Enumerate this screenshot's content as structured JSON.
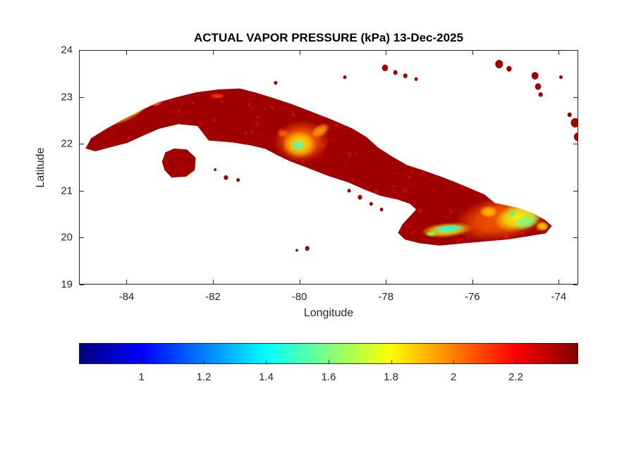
{
  "page": {
    "background": "#ffffff"
  },
  "chart_data": {
    "type": "heatmap",
    "title": "ACTUAL VAPOR PRESSURE (kPa) 13-Dec-2025",
    "xlabel": "Longitude",
    "ylabel": "Latitude",
    "xlim": [
      -85.1,
      -73.55
    ],
    "ylim": [
      19,
      24
    ],
    "xticks": [
      -84,
      -82,
      -80,
      -78,
      -76,
      -74
    ],
    "yticks": [
      19,
      20,
      21,
      22,
      23,
      24
    ],
    "grid": false,
    "legend": "none",
    "colormap": "jet",
    "axis_color": "#262626",
    "title_color": "#000000",
    "sea_color": "#ffffff",
    "colorbar": {
      "orientation": "horizontal",
      "limits": [
        0.8,
        2.4
      ],
      "ticks": [
        1,
        1.2,
        1.4,
        1.6,
        1.8,
        2,
        2.2
      ]
    },
    "base_land_value_kpa": 2.35,
    "regions": {
      "cuba_mainland": [
        [
          -84.95,
          21.9
        ],
        [
          -84.82,
          22.12
        ],
        [
          -84.45,
          22.33
        ],
        [
          -84.08,
          22.52
        ],
        [
          -83.7,
          22.7
        ],
        [
          -83.28,
          22.88
        ],
        [
          -82.82,
          23.0
        ],
        [
          -82.38,
          23.1
        ],
        [
          -81.88,
          23.16
        ],
        [
          -81.38,
          23.18
        ],
        [
          -81.0,
          23.09
        ],
        [
          -80.62,
          22.98
        ],
        [
          -80.22,
          22.86
        ],
        [
          -79.76,
          22.7
        ],
        [
          -79.26,
          22.52
        ],
        [
          -78.78,
          22.33
        ],
        [
          -78.44,
          22.14
        ],
        [
          -78.18,
          21.92
        ],
        [
          -77.86,
          21.73
        ],
        [
          -77.52,
          21.55
        ],
        [
          -77.12,
          21.43
        ],
        [
          -76.72,
          21.3
        ],
        [
          -76.36,
          21.17
        ],
        [
          -76.0,
          21.03
        ],
        [
          -75.72,
          20.92
        ],
        [
          -75.48,
          20.74
        ],
        [
          -74.98,
          20.64
        ],
        [
          -74.58,
          20.51
        ],
        [
          -74.32,
          20.38
        ],
        [
          -74.16,
          20.25
        ],
        [
          -74.3,
          20.09
        ],
        [
          -74.7,
          20.03
        ],
        [
          -75.2,
          19.96
        ],
        [
          -75.7,
          19.92
        ],
        [
          -76.18,
          19.88
        ],
        [
          -76.76,
          19.83
        ],
        [
          -77.22,
          19.88
        ],
        [
          -77.56,
          19.96
        ],
        [
          -77.72,
          20.1
        ],
        [
          -77.62,
          20.28
        ],
        [
          -77.44,
          20.46
        ],
        [
          -77.3,
          20.6
        ],
        [
          -77.44,
          20.72
        ],
        [
          -77.72,
          20.81
        ],
        [
          -78.12,
          20.89
        ],
        [
          -78.48,
          21.02
        ],
        [
          -78.88,
          21.18
        ],
        [
          -79.32,
          21.31
        ],
        [
          -79.82,
          21.49
        ],
        [
          -80.22,
          21.63
        ],
        [
          -80.52,
          21.76
        ],
        [
          -80.78,
          21.89
        ],
        [
          -81.14,
          21.97
        ],
        [
          -81.55,
          22.03
        ],
        [
          -82.1,
          22.07
        ],
        [
          -82.36,
          22.38
        ],
        [
          -82.8,
          22.42
        ],
        [
          -83.25,
          22.32
        ],
        [
          -83.6,
          22.18
        ],
        [
          -83.98,
          22.02
        ],
        [
          -84.4,
          21.92
        ],
        [
          -84.72,
          21.84
        ]
      ],
      "isla_de_la_juventud": [
        [
          -83.18,
          21.62
        ],
        [
          -83.1,
          21.82
        ],
        [
          -82.9,
          21.9
        ],
        [
          -82.6,
          21.88
        ],
        [
          -82.4,
          21.7
        ],
        [
          -82.42,
          21.44
        ],
        [
          -82.62,
          21.3
        ],
        [
          -82.96,
          21.28
        ],
        [
          -83.12,
          21.44
        ]
      ]
    },
    "islets": [
      [
        -80.55,
        23.3,
        0.04
      ],
      [
        -78.95,
        23.42,
        0.04
      ],
      [
        -78.02,
        23.62,
        0.07
      ],
      [
        -77.78,
        23.52,
        0.05
      ],
      [
        -77.55,
        23.45,
        0.05
      ],
      [
        -77.3,
        23.38,
        0.04
      ],
      [
        -75.38,
        23.7,
        0.09
      ],
      [
        -75.15,
        23.6,
        0.06
      ],
      [
        -74.55,
        23.45,
        0.08
      ],
      [
        -74.48,
        23.22,
        0.07
      ],
      [
        -74.42,
        23.05,
        0.05
      ],
      [
        -73.95,
        23.42,
        0.04
      ],
      [
        -73.75,
        22.62,
        0.05
      ],
      [
        -73.62,
        22.45,
        0.1
      ],
      [
        -73.56,
        22.15,
        0.09
      ],
      [
        -81.95,
        21.45,
        0.03
      ],
      [
        -81.7,
        21.28,
        0.05
      ],
      [
        -81.42,
        21.23,
        0.04
      ],
      [
        -78.85,
        21.0,
        0.04
      ],
      [
        -78.6,
        20.86,
        0.05
      ],
      [
        -78.34,
        20.72,
        0.04
      ],
      [
        -78.1,
        20.6,
        0.04
      ],
      [
        -79.82,
        19.77,
        0.05
      ],
      [
        -80.06,
        19.73,
        0.03
      ]
    ],
    "low_value_spots": [
      [
        -84.05,
        22.6,
        0.5,
        0.14,
        -24,
        1.95
      ],
      [
        -83.82,
        22.7,
        0.28,
        0.09,
        -22,
        1.78
      ],
      [
        -83.3,
        22.86,
        0.14,
        0.06,
        -18,
        2.05
      ],
      [
        -81.9,
        23.02,
        0.18,
        0.06,
        0,
        2.1
      ],
      [
        -79.95,
        22.05,
        0.65,
        0.45,
        0,
        2.05
      ],
      [
        -80.0,
        21.99,
        0.4,
        0.3,
        0,
        1.85
      ],
      [
        -80.03,
        21.97,
        0.17,
        0.13,
        0,
        1.52
      ],
      [
        -79.52,
        22.28,
        0.25,
        0.13,
        -30,
        1.95
      ],
      [
        -80.38,
        22.22,
        0.14,
        0.09,
        0,
        2.05
      ],
      [
        -75.3,
        20.42,
        1.15,
        0.48,
        -10,
        2.05
      ],
      [
        -76.6,
        20.16,
        0.6,
        0.16,
        -5,
        1.82
      ],
      [
        -76.55,
        20.19,
        0.38,
        0.09,
        -5,
        1.45
      ],
      [
        -76.95,
        20.08,
        0.14,
        0.06,
        0,
        1.6
      ],
      [
        -74.92,
        20.44,
        0.58,
        0.3,
        -15,
        1.78
      ],
      [
        -74.75,
        20.34,
        0.32,
        0.16,
        -15,
        1.6
      ],
      [
        -75.08,
        20.52,
        0.1,
        0.06,
        0,
        1.48
      ],
      [
        -75.62,
        20.55,
        0.22,
        0.13,
        0,
        1.9
      ],
      [
        -74.38,
        20.24,
        0.16,
        0.11,
        0,
        1.85
      ]
    ]
  }
}
